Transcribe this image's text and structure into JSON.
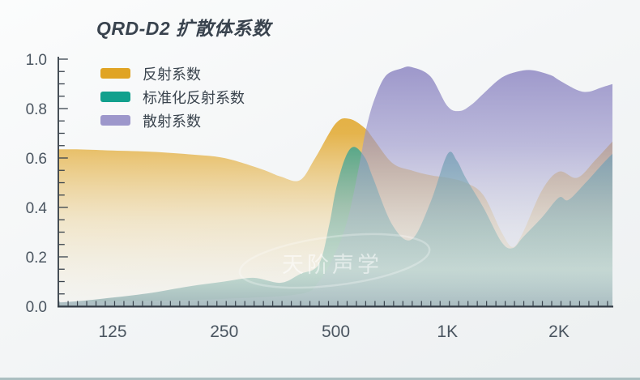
{
  "title": "QRD-D2 扩散体系数",
  "watermark": "天阶声学",
  "colors": {
    "background_top": "#fbfcfc",
    "background_bottom": "#edf0f1",
    "axis": "#333c45",
    "tick": "#39434d",
    "axis_label": "#4a5560",
    "title_text": "#39434e",
    "bottom_strip": "#abbfc1",
    "watermark_white": "rgba(255,255,255,0.55)"
  },
  "chart_data": {
    "type": "area",
    "title": "QRD-D2 扩散体系数",
    "x_axis": {
      "scale": "log2-frequency-hz",
      "range_hz": [
        88,
        2800
      ],
      "tick_labels": [
        "125",
        "250",
        "500",
        "1K",
        "2K"
      ],
      "tick_freqs_hz": [
        125,
        250,
        500,
        1000,
        2000
      ],
      "minor_ticks_per_octave": 12
    },
    "y_axis": {
      "range": [
        0.0,
        1.0
      ],
      "tick_labels": [
        "0.0",
        "0.2",
        "0.4",
        "0.6",
        "0.8",
        "1.0"
      ],
      "tick_values": [
        0.0,
        0.2,
        0.4,
        0.6,
        0.8,
        1.0
      ],
      "minor_step": 0.05
    },
    "legend_position": "top-left-inside",
    "grid": false,
    "series": [
      {
        "name": "反射系数",
        "color": "#e0a424",
        "fill_stops": [
          [
            0,
            "#e0a424",
            0.97
          ],
          [
            0.3,
            "#e2a82e",
            0.85
          ],
          [
            0.65,
            "#edd49c",
            0.52
          ],
          [
            1,
            "#f2ebd8",
            0.16
          ]
        ],
        "points": [
          [
            88,
            0.635
          ],
          [
            100,
            0.635
          ],
          [
            125,
            0.63
          ],
          [
            160,
            0.625
          ],
          [
            200,
            0.615
          ],
          [
            250,
            0.6
          ],
          [
            315,
            0.555
          ],
          [
            355,
            0.525
          ],
          [
            400,
            0.51
          ],
          [
            440,
            0.6
          ],
          [
            500,
            0.74
          ],
          [
            545,
            0.758
          ],
          [
            600,
            0.72
          ],
          [
            630,
            0.68
          ],
          [
            710,
            0.58
          ],
          [
            800,
            0.55
          ],
          [
            900,
            0.53
          ],
          [
            1000,
            0.52
          ],
          [
            1120,
            0.5
          ],
          [
            1250,
            0.45
          ],
          [
            1400,
            0.3
          ],
          [
            1500,
            0.24
          ],
          [
            1600,
            0.3
          ],
          [
            1800,
            0.47
          ],
          [
            2000,
            0.545
          ],
          [
            2240,
            0.52
          ],
          [
            2500,
            0.59
          ],
          [
            2800,
            0.67
          ]
        ]
      },
      {
        "name": "标准化反射系数",
        "color": "#12a08d",
        "fill_stops": [
          [
            0,
            "#0da08d",
            0.97
          ],
          [
            0.3,
            "#239e8e",
            0.82
          ],
          [
            0.6,
            "#6eafa8",
            0.6
          ],
          [
            0.85,
            "#a8d0c4",
            0.62
          ],
          [
            1,
            "#96afb2",
            0.85
          ]
        ],
        "points": [
          [
            88,
            0.015
          ],
          [
            100,
            0.02
          ],
          [
            125,
            0.035
          ],
          [
            160,
            0.055
          ],
          [
            200,
            0.08
          ],
          [
            250,
            0.1
          ],
          [
            300,
            0.115
          ],
          [
            355,
            0.095
          ],
          [
            400,
            0.13
          ],
          [
            450,
            0.17
          ],
          [
            480,
            0.33
          ],
          [
            500,
            0.47
          ],
          [
            530,
            0.6
          ],
          [
            560,
            0.645
          ],
          [
            600,
            0.6
          ],
          [
            630,
            0.52
          ],
          [
            710,
            0.33
          ],
          [
            800,
            0.27
          ],
          [
            900,
            0.42
          ],
          [
            1000,
            0.615
          ],
          [
            1060,
            0.59
          ],
          [
            1120,
            0.52
          ],
          [
            1250,
            0.4
          ],
          [
            1400,
            0.26
          ],
          [
            1500,
            0.235
          ],
          [
            1600,
            0.28
          ],
          [
            1800,
            0.36
          ],
          [
            2000,
            0.44
          ],
          [
            2120,
            0.43
          ],
          [
            2360,
            0.5
          ],
          [
            2600,
            0.57
          ],
          [
            2800,
            0.62
          ]
        ]
      },
      {
        "name": "散射系数",
        "color": "#9d97cb",
        "fill_stops": [
          [
            0,
            "#958fc6",
            0.95
          ],
          [
            0.35,
            "#9b96cb",
            0.62
          ],
          [
            0.7,
            "#bebed7",
            0.3
          ],
          [
            1,
            "#d2d2e4",
            0.15
          ]
        ],
        "points": [
          [
            88,
            0.02
          ],
          [
            125,
            0.02
          ],
          [
            250,
            0.03
          ],
          [
            400,
            0.05
          ],
          [
            450,
            0.1
          ],
          [
            500,
            0.22
          ],
          [
            540,
            0.36
          ],
          [
            580,
            0.58
          ],
          [
            600,
            0.7
          ],
          [
            630,
            0.82
          ],
          [
            680,
            0.93
          ],
          [
            750,
            0.962
          ],
          [
            800,
            0.968
          ],
          [
            900,
            0.93
          ],
          [
            1000,
            0.81
          ],
          [
            1080,
            0.79
          ],
          [
            1160,
            0.815
          ],
          [
            1250,
            0.86
          ],
          [
            1400,
            0.925
          ],
          [
            1550,
            0.95
          ],
          [
            1700,
            0.955
          ],
          [
            1900,
            0.935
          ],
          [
            2000,
            0.915
          ],
          [
            2240,
            0.875
          ],
          [
            2400,
            0.868
          ],
          [
            2600,
            0.885
          ],
          [
            2800,
            0.9
          ]
        ]
      }
    ]
  }
}
